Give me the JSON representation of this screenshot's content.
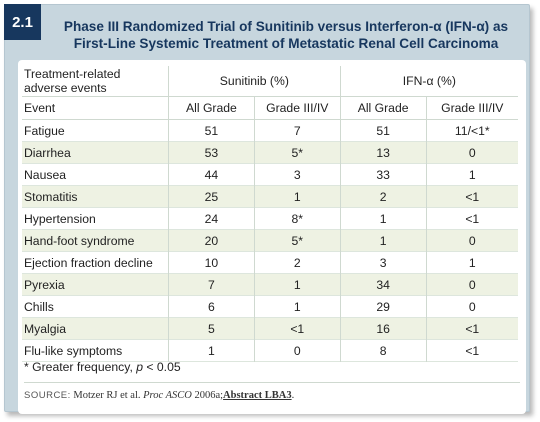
{
  "figure": {
    "badge": "2.1",
    "title_line1": "Phase III Randomized Trial of Sunitinib versus Interferon-α (IFN-α) as",
    "title_line2": "First-Line Systemic Treatment of Metastatic Renal Cell Carcinoma"
  },
  "table": {
    "group_header": "Treatment-related adverse events",
    "group_sunitinib": "Sunitinib (%)",
    "group_ifn": "IFN-α (%)",
    "col_event": "Event",
    "col_all1": "All Grade",
    "col_g1": "Grade III/IV",
    "col_all2": "All Grade",
    "col_g2": "Grade III/IV",
    "rows": [
      {
        "event": "Fatigue",
        "s_all": "51",
        "s_g": "7",
        "i_all": "51",
        "i_g": "11/<1*"
      },
      {
        "event": "Diarrhea",
        "s_all": "53",
        "s_g": "5*",
        "i_all": "13",
        "i_g": "0"
      },
      {
        "event": "Nausea",
        "s_all": "44",
        "s_g": "3",
        "i_all": "33",
        "i_g": "1"
      },
      {
        "event": "Stomatitis",
        "s_all": "25",
        "s_g": "1",
        "i_all": "2",
        "i_g": "<1"
      },
      {
        "event": "Hypertension",
        "s_all": "24",
        "s_g": "8*",
        "i_all": "1",
        "i_g": "<1"
      },
      {
        "event": "Hand-foot syndrome",
        "s_all": "20",
        "s_g": "5*",
        "i_all": "1",
        "i_g": "0"
      },
      {
        "event": "Ejection fraction decline",
        "s_all": "10",
        "s_g": "2",
        "i_all": "3",
        "i_g": "1"
      },
      {
        "event": "Pyrexia",
        "s_all": "7",
        "s_g": "1",
        "i_all": "34",
        "i_g": "0"
      },
      {
        "event": "Chills",
        "s_all": "6",
        "s_g": "1",
        "i_all": "29",
        "i_g": "0"
      },
      {
        "event": "Myalgia",
        "s_all": "5",
        "s_g": "<1",
        "i_all": "16",
        "i_g": "<1"
      },
      {
        "event": "Flu-like symptoms",
        "s_all": "1",
        "s_g": "0",
        "i_all": "8",
        "i_g": "<1"
      }
    ]
  },
  "footnote": {
    "prefix": "* Greater frequency, ",
    "p": "p",
    "suffix": " < 0.05"
  },
  "source": {
    "label": "SOURCE:",
    "text": " Motzer RJ et al. ",
    "journal": "Proc ASCO",
    "year": " 2006a;",
    "link": "Abstract LBA3",
    "end": "."
  },
  "colors": {
    "frame": "#c7d6de",
    "badge": "#17375e",
    "title": "#17375e",
    "alt_row": "#eef2e3"
  }
}
